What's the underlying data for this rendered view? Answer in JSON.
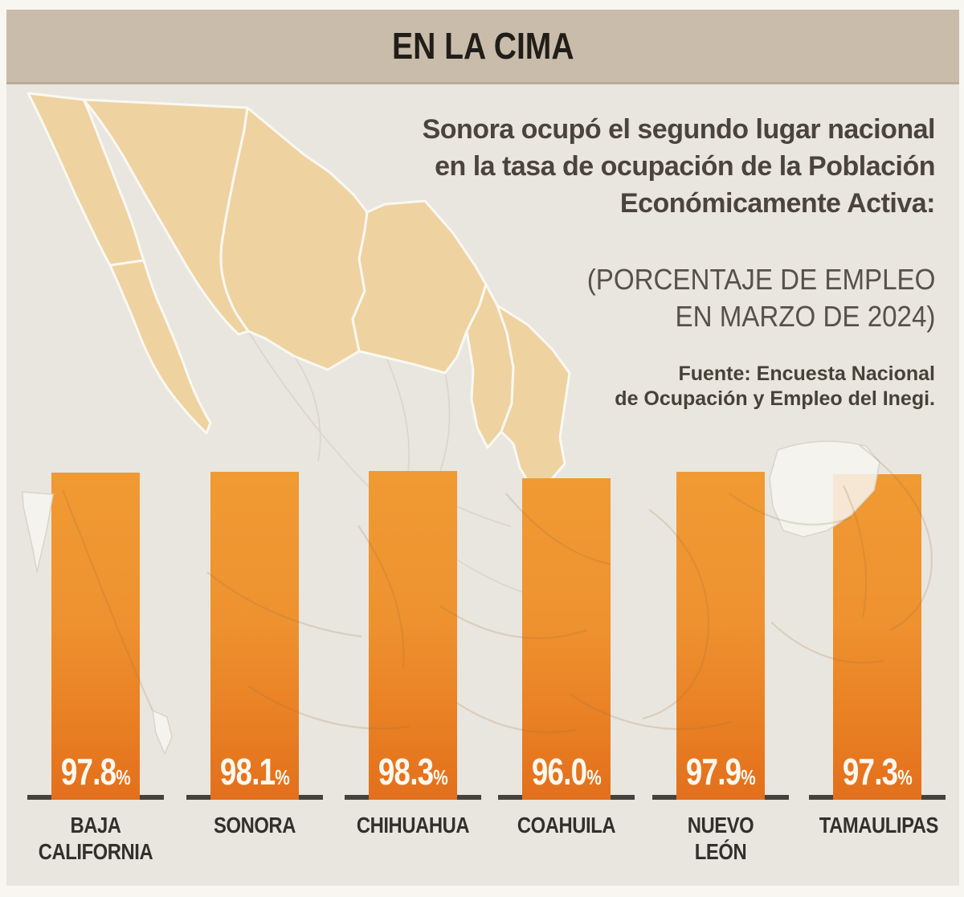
{
  "header": {
    "title": "EN LA CIMA"
  },
  "intro": {
    "lines": [
      "Sonora ocupó el segundo lugar nacional",
      "en la tasa de ocupación de la Población",
      "Económicamente Activa:"
    ]
  },
  "qualifier": {
    "lines": [
      "(PORCENTAJE DE EMPLEO",
      "EN MARZO DE 2024)"
    ]
  },
  "source": {
    "lines": [
      "Fuente: Encuesta Nacional",
      "de Ocupación y Empleo del Inegi."
    ]
  },
  "chart_data": {
    "type": "bar",
    "title": "EN LA CIMA",
    "categories": [
      "BAJA CALIFORNIA",
      "SONORA",
      "CHIHUAHUA",
      "COAHUILA",
      "NUEVO LEÓN",
      "TAMAULIPAS"
    ],
    "values": [
      97.8,
      98.1,
      98.3,
      96.0,
      97.9,
      97.3
    ],
    "value_labels": [
      "97.8",
      "98.1",
      "98.3",
      "96.0",
      "97.9",
      "97.3"
    ],
    "unit": "%",
    "legend": "none",
    "grid": "off",
    "colors": {
      "bar_gradient_top": "#f09a33",
      "bar_gradient_bottom": "#e26f1c",
      "value_text": "#fdf8ef",
      "axis_line": "#45423d",
      "band": "#c9bcaa",
      "background": "#e9e6df",
      "map_highlight": "#eed2a0"
    }
  },
  "map": {
    "highlighted_states": [
      "Baja California",
      "Baja California Sur",
      "Sonora",
      "Chihuahua",
      "Coahuila",
      "Nuevo León",
      "Tamaulipas"
    ]
  }
}
